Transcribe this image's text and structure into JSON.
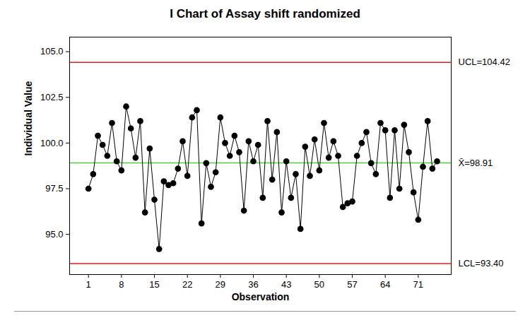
{
  "chart_data": {
    "type": "line",
    "title": "I Chart of Assay shift randomized",
    "x_label": "Observation",
    "y_label": "Individual Value",
    "x": [
      1,
      2,
      3,
      4,
      5,
      6,
      7,
      8,
      9,
      10,
      11,
      12,
      13,
      14,
      15,
      16,
      17,
      18,
      19,
      20,
      21,
      22,
      23,
      24,
      25,
      26,
      27,
      28,
      29,
      30,
      31,
      32,
      33,
      34,
      35,
      36,
      37,
      38,
      39,
      40,
      41,
      42,
      43,
      44,
      45,
      46,
      47,
      48,
      49,
      50,
      51,
      52,
      53,
      54,
      55,
      56,
      57,
      58,
      59,
      60,
      61,
      62,
      63,
      64,
      65,
      66,
      67,
      68,
      69,
      70,
      71,
      72,
      73,
      74,
      75
    ],
    "values": [
      97.5,
      98.3,
      100.4,
      99.9,
      99.3,
      101.1,
      99.0,
      98.5,
      102.0,
      100.8,
      99.2,
      101.2,
      96.2,
      99.7,
      96.9,
      94.2,
      97.9,
      97.7,
      97.8,
      98.6,
      100.1,
      98.2,
      101.4,
      101.8,
      95.6,
      98.9,
      97.6,
      98.4,
      101.4,
      100.0,
      99.3,
      100.4,
      99.5,
      96.3,
      100.1,
      99.0,
      99.9,
      97.0,
      101.2,
      98.0,
      100.6,
      96.2,
      99.0,
      97.0,
      98.3,
      95.3,
      99.8,
      98.2,
      100.2,
      98.5,
      101.1,
      99.2,
      100.1,
      99.3,
      96.5,
      96.7,
      96.8,
      99.3,
      100.0,
      100.6,
      98.9,
      98.3,
      101.1,
      100.7,
      97.0,
      100.7,
      97.5,
      101.0,
      99.5,
      97.3,
      95.8,
      98.7,
      101.2,
      98.6,
      99.0
    ],
    "color": "#000000",
    "marker": "circle",
    "xlim": [
      -3,
      78
    ],
    "ylim": [
      92.8,
      105.8
    ],
    "xticks": [
      1,
      8,
      15,
      22,
      29,
      36,
      43,
      50,
      57,
      64,
      71
    ],
    "yticks": [
      {
        "value": 95,
        "label": "95.0"
      },
      97.5,
      {
        "value": 100,
        "label": "100.0"
      },
      102.5,
      {
        "value": 105,
        "label": "105.0"
      }
    ],
    "grid": false,
    "reference_lines": [
      {
        "value": 104.42,
        "label": "UCL=104.42",
        "color": "#dd1f1f"
      },
      {
        "value": 98.91,
        "label": "X̄=98.91",
        "color": "#4cd03a"
      },
      {
        "value": 93.4,
        "label": "LCL=93.40",
        "color": "#dd1f1f"
      }
    ]
  }
}
